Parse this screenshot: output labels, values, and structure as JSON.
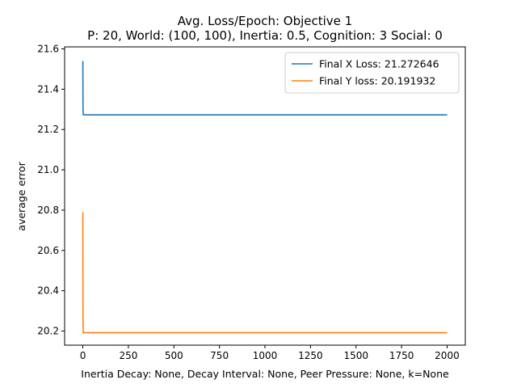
{
  "chart_data": {
    "type": "line",
    "title": "Avg. Loss/Epoch: Objective 1",
    "subtitle": "P: 20, World: (100, 100), Inertia: 0.5, Cognition: 3 Social: 0",
    "xlabel": "Inertia Decay: None, Decay Interval: None, Peer Pressure: None, k=None",
    "ylabel": "average error",
    "xlim": [
      -100,
      2100
    ],
    "ylim": [
      20.13,
      21.61
    ],
    "xticks": [
      0,
      250,
      500,
      750,
      1000,
      1250,
      1500,
      1750,
      2000
    ],
    "yticks": [
      20.2,
      20.4,
      20.6,
      20.8,
      21.0,
      21.2,
      21.4,
      21.6
    ],
    "grid": false,
    "legend_position": "top-right",
    "series": [
      {
        "name": "Final X Loss: 21.272646",
        "color": "#1f77b4",
        "x": [
          0,
          1,
          2,
          3,
          2000
        ],
        "y": [
          21.54,
          21.3,
          21.275,
          21.272646,
          21.272646
        ]
      },
      {
        "name": "Final Y loss: 20.191932",
        "color": "#ff7f0e",
        "x": [
          0,
          1,
          2,
          3,
          2000
        ],
        "y": [
          20.79,
          20.25,
          20.195,
          20.191932,
          20.191932
        ]
      }
    ]
  }
}
